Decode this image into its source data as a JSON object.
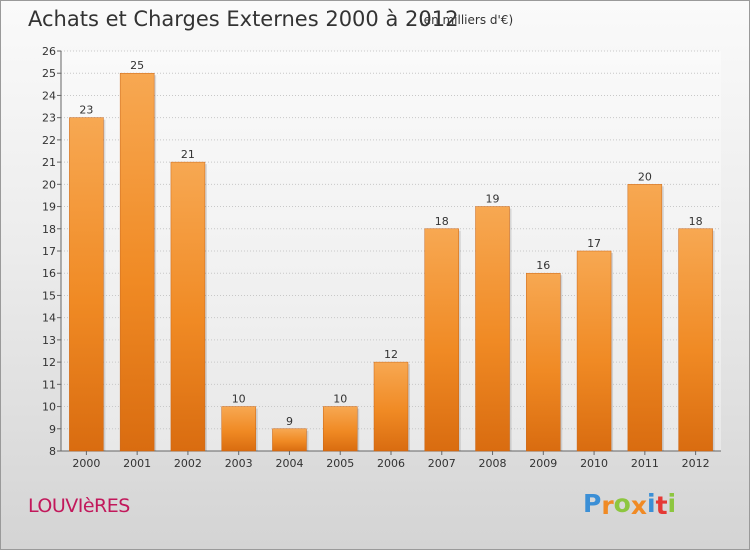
{
  "chart_data": {
    "type": "bar",
    "title": "Achats et Charges Externes 2000 à 2012",
    "subtitle": "(en milliers d'€)",
    "categories": [
      "2000",
      "2001",
      "2002",
      "2003",
      "2004",
      "2005",
      "2006",
      "2007",
      "2008",
      "2009",
      "2010",
      "2011",
      "2012"
    ],
    "values": [
      23,
      25,
      21,
      10,
      9,
      10,
      12,
      18,
      19,
      16,
      17,
      20,
      18
    ],
    "data_labels": [
      "23",
      "25",
      "21",
      "10",
      "9",
      "10",
      "12",
      "18",
      "19",
      "16",
      "17",
      "20",
      "18"
    ],
    "ylim": [
      8,
      26
    ],
    "yticks": [
      8,
      9,
      10,
      11,
      12,
      13,
      14,
      15,
      16,
      17,
      18,
      19,
      20,
      21,
      22,
      23,
      24,
      25,
      26
    ],
    "ytick_labels": [
      "8",
      "9",
      "10",
      "11",
      "12",
      "13",
      "14",
      "15",
      "16",
      "17",
      "18",
      "19",
      "20",
      "21",
      "22",
      "23",
      "24",
      "25",
      "26"
    ],
    "grid": true,
    "bar_color": "#f08a24",
    "bar_color_light": "#f7a852",
    "bar_color_dark": "#d96c10"
  },
  "footer": {
    "place": "LOUVIèRES",
    "logo_letters": [
      "P",
      "r",
      "o",
      "x",
      "i",
      "t",
      "i"
    ],
    "logo_colors": [
      "#3b8fd6",
      "#f08a24",
      "#8dc63f",
      "#f08a24",
      "#3b8fd6",
      "#e53935",
      "#8dc63f"
    ]
  }
}
